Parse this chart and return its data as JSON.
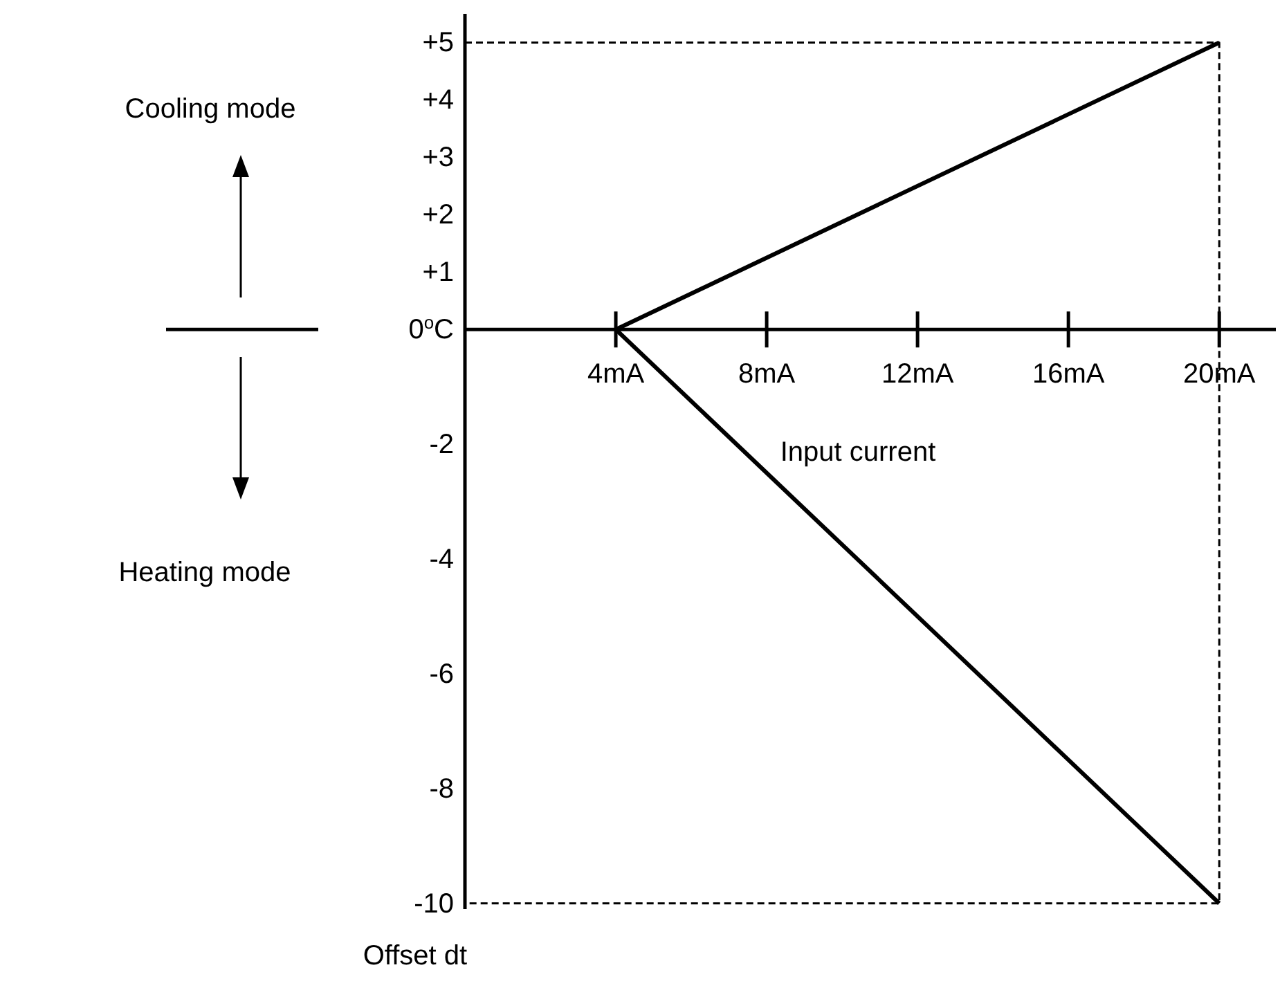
{
  "chart_data": {
    "type": "line",
    "xlabel": "Input current",
    "ylabel": "Offset dt",
    "annotations": [
      "Cooling mode",
      "Heating mode"
    ],
    "xlim": [
      0,
      21.5
    ],
    "ylim": [
      -10.1,
      5.5
    ],
    "xticks": [
      {
        "value": 4,
        "label": "4mA"
      },
      {
        "value": 8,
        "label": "8mA"
      },
      {
        "value": 12,
        "label": "12mA"
      },
      {
        "value": 16,
        "label": "16mA"
      },
      {
        "value": 20,
        "label": "20mA"
      }
    ],
    "yticks": [
      {
        "value": 5,
        "label": "+5"
      },
      {
        "value": 4,
        "label": "+4"
      },
      {
        "value": 3,
        "label": "+3"
      },
      {
        "value": 2,
        "label": "+2"
      },
      {
        "value": 1,
        "label": "+1"
      },
      {
        "value": 0,
        "label": "0$^{o}$C"
      },
      -2,
      -4,
      -6,
      -8,
      -10
    ],
    "grid": false,
    "marker": "none",
    "series": [
      {
        "color": "#000000",
        "x": [
          4,
          20
        ],
        "values": [
          0,
          5
        ]
      },
      {
        "color": "#000000",
        "x": [
          4,
          20
        ],
        "values": [
          0,
          -10
        ]
      },
      {
        "color": "#000000",
        "x": [
          0,
          20,
          20,
          0
        ],
        "values": [
          5,
          5,
          -10,
          -10
        ],
        "line_style": "dashed"
      }
    ]
  }
}
